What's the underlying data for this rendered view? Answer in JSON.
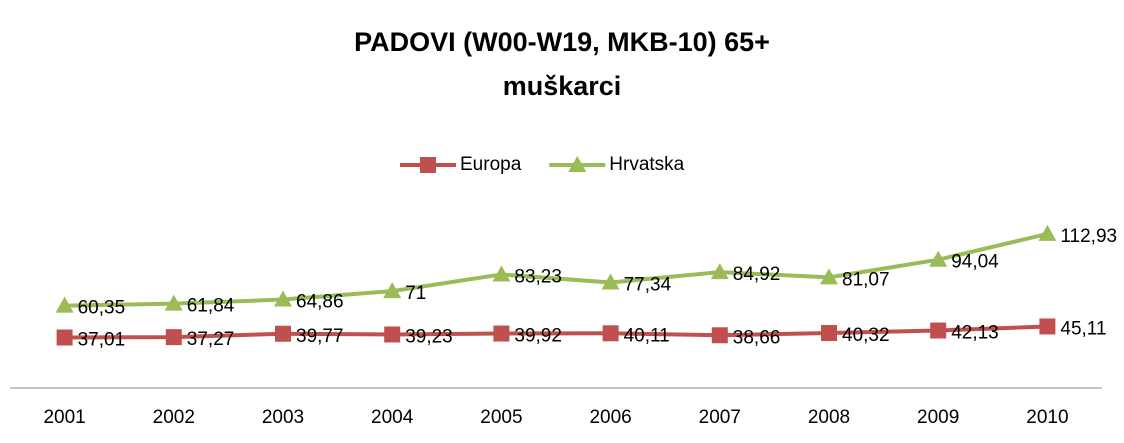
{
  "chart_data": {
    "type": "line",
    "title": [
      "PADOVI (W00-W19, MKB-10) 65+",
      "muškarci"
    ],
    "categories": [
      "2001",
      "2002",
      "2003",
      "2004",
      "2005",
      "2006",
      "2007",
      "2008",
      "2009",
      "2010"
    ],
    "series": [
      {
        "name": "Europa",
        "color": "#c0504d",
        "marker": "square",
        "values": [
          37.01,
          37.27,
          39.77,
          39.23,
          39.92,
          40.11,
          38.66,
          40.32,
          42.13,
          45.11
        ],
        "value_labels": [
          "37,01",
          "37,27",
          "39,77",
          "39,23",
          "39,92",
          "40,11",
          "38,66",
          "40,32",
          "42,13",
          "45,11"
        ]
      },
      {
        "name": "Hrvatska",
        "color": "#9bbb59",
        "marker": "triangle",
        "values": [
          60.35,
          61.84,
          64.86,
          71,
          83.23,
          77.34,
          84.92,
          81.07,
          94.04,
          112.93
        ],
        "value_labels": [
          "60,35",
          "61,84",
          "64,86",
          "71",
          "83,23",
          "77,34",
          "84,92",
          "81,07",
          "94,04",
          "112,93"
        ]
      }
    ],
    "ylim": [
      0,
      140
    ],
    "legend": "top"
  }
}
